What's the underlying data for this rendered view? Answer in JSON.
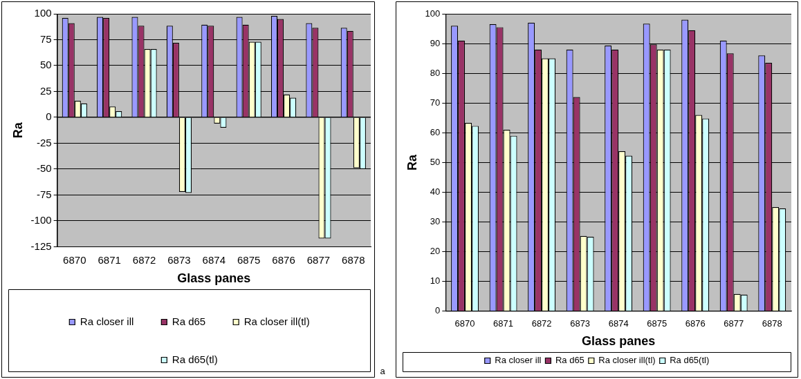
{
  "chart_data": [
    {
      "type": "bar",
      "xlabel": "Glass panes",
      "ylabel": "Ra",
      "categories": [
        "6870",
        "6871",
        "6872",
        "6873",
        "6874",
        "6875",
        "6876",
        "6877",
        "6878"
      ],
      "series": [
        {
          "name": "Ra closer ill",
          "color": "#9999ff",
          "values": [
            96,
            97,
            97,
            88.5,
            89.5,
            97,
            98,
            91,
            86.5
          ]
        },
        {
          "name": "Ra d65",
          "color": "#993366",
          "values": [
            91,
            96,
            88.5,
            72,
            88.5,
            89.5,
            95,
            86.5,
            83.5
          ]
        },
        {
          "name": "Ra closer ill(tl)",
          "color": "#ffffcc",
          "values": [
            16,
            10.5,
            66,
            -72,
            -6,
            73,
            22,
            -117,
            -49
          ]
        },
        {
          "name": "Ra d65(tl)",
          "color": "#ccffff",
          "values": [
            13.5,
            6,
            66,
            -73,
            -10,
            73,
            19,
            -117,
            -50
          ]
        }
      ],
      "ylim": [
        -125,
        100
      ],
      "yticks": [
        -125,
        -100,
        -75,
        -50,
        -25,
        0,
        25,
        50,
        75,
        100
      ],
      "grid": "y",
      "legend": "bottom",
      "annotations": [
        "a"
      ]
    },
    {
      "type": "bar",
      "xlabel": "Glass panes",
      "ylabel": "Ra",
      "categories": [
        "6870",
        "6871",
        "6872",
        "6873",
        "6874",
        "6875",
        "6876",
        "6877",
        "6878"
      ],
      "series": [
        {
          "name": "Ra closer ill",
          "color": "#9999ff",
          "values": [
            96,
            96.5,
            97,
            88,
            89.3,
            96.7,
            98,
            91,
            86
          ]
        },
        {
          "name": "Ra d65",
          "color": "#993366",
          "values": [
            91,
            95.5,
            88,
            72,
            88,
            89.7,
            94.5,
            86.7,
            83.5
          ]
        },
        {
          "name": "Ra closer ill(tl)",
          "color": "#ffffcc",
          "values": [
            63.3,
            61,
            85,
            25.3,
            53.8,
            88,
            66,
            5.8,
            35
          ]
        },
        {
          "name": "Ra d65(tl)",
          "color": "#ccffff",
          "values": [
            62.3,
            59,
            85,
            25,
            52.3,
            88,
            64.8,
            5.6,
            34.6
          ]
        }
      ],
      "ylim": [
        0,
        100
      ],
      "yticks": [
        0,
        10,
        20,
        30,
        40,
        50,
        60,
        70,
        80,
        90,
        100
      ],
      "grid": "y",
      "legend": "bottom"
    }
  ]
}
